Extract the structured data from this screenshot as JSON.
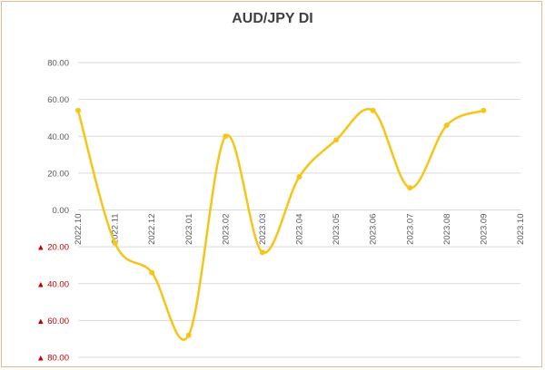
{
  "chart_data": {
    "type": "line",
    "title": "AUD/JPY  DI",
    "xlabel": "",
    "ylabel": "",
    "categories": [
      "2022.10",
      "2022.11",
      "2022.12",
      "2023.01",
      "2023.02",
      "2023.03",
      "2023.04",
      "2023.05",
      "2023.06",
      "2023.07",
      "2023.08",
      "2023.09",
      "2023.10"
    ],
    "series": [
      {
        "values": [
          54,
          -18,
          -34,
          -68,
          40,
          -23,
          18,
          38,
          54,
          12,
          46,
          54,
          null
        ]
      }
    ],
    "ylim": [
      -80,
      80
    ],
    "ytick_step": 20,
    "ytick_labels": [
      "80.00",
      "60.00",
      "40.00",
      "20.00",
      "0.00",
      "20.00",
      "40.00",
      "60.00",
      "80.00"
    ],
    "negative_marker": "▲",
    "grid": true,
    "legend": "none",
    "colors": {
      "line": "#f5c518",
      "grid": "#d9d9d9",
      "negative_label": "#c00000",
      "positive_label": "#595959",
      "frame": "#e7b98f"
    }
  }
}
